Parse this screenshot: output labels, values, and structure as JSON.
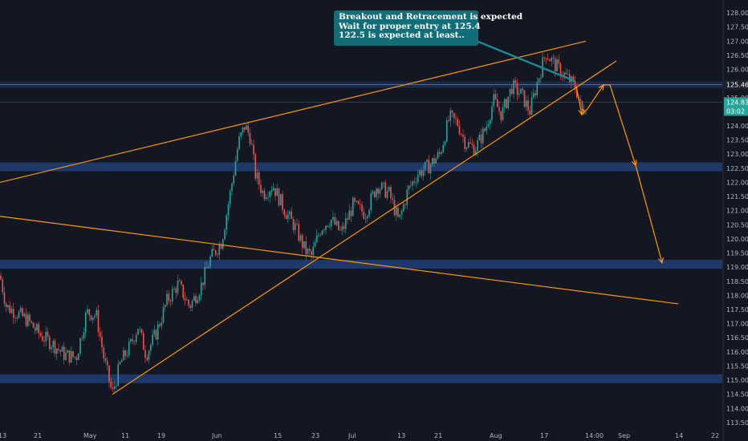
{
  "colors": {
    "background": "#131722",
    "up": "#26a69a",
    "down": "#ef5350",
    "trendline": "#ff9800",
    "zone": "#1e3a6e",
    "callout": "#116d78"
  },
  "annotation": {
    "lines": [
      "Breakout and Retracement is expected",
      "Wait for proper entry at 125.4",
      "122.5 is expected at least.."
    ]
  },
  "price_badges": [
    {
      "value": "125.460",
      "style": "dark"
    },
    {
      "value": "124.839",
      "style": "green"
    },
    {
      "value": "03:02",
      "style": "green"
    }
  ],
  "chart_data": {
    "type": "candlestick",
    "x_ticks": [
      "13",
      "21",
      "May",
      "11",
      "19",
      "Jun",
      "15",
      "23",
      "Jul",
      "13",
      "21",
      "Aug",
      "17",
      "14:00",
      "Sep",
      "14",
      "22"
    ],
    "y_ticks": [
      "128.000",
      "127.500",
      "127.000",
      "126.500",
      "126.000",
      "125.500",
      "125.000",
      "124.500",
      "124.000",
      "123.500",
      "123.000",
      "122.500",
      "122.000",
      "121.500",
      "121.000",
      "120.500",
      "120.000",
      "119.500",
      "119.000",
      "118.500",
      "118.000",
      "117.500",
      "117.000",
      "116.500",
      "116.000",
      "115.500",
      "115.000",
      "114.500",
      "114.000",
      "113.500"
    ],
    "ylim": [
      113.3,
      128.2
    ],
    "price_path": [
      [
        0,
        118.7
      ],
      [
        8,
        117.6
      ],
      [
        20,
        117.4
      ],
      [
        35,
        117.1
      ],
      [
        50,
        116.6
      ],
      [
        65,
        116.3
      ],
      [
        80,
        115.9
      ],
      [
        95,
        115.8
      ],
      [
        108,
        117.4
      ],
      [
        120,
        117.3
      ],
      [
        130,
        115.7
      ],
      [
        140,
        114.5
      ],
      [
        150,
        115.6
      ],
      [
        162,
        116.2
      ],
      [
        172,
        116.9
      ],
      [
        182,
        115.9
      ],
      [
        195,
        116.7
      ],
      [
        208,
        117.8
      ],
      [
        222,
        118.4
      ],
      [
        236,
        117.6
      ],
      [
        250,
        118.3
      ],
      [
        262,
        119.3
      ],
      [
        276,
        119.9
      ],
      [
        288,
        121.8
      ],
      [
        297,
        123.4
      ],
      [
        305,
        124.0
      ],
      [
        312,
        123.6
      ],
      [
        318,
        122.3
      ],
      [
        328,
        121.6
      ],
      [
        340,
        121.9
      ],
      [
        355,
        121.0
      ],
      [
        368,
        120.4
      ],
      [
        380,
        119.6
      ],
      [
        388,
        119.4
      ],
      [
        400,
        120.4
      ],
      [
        412,
        120.7
      ],
      [
        425,
        120.2
      ],
      [
        440,
        121.2
      ],
      [
        455,
        120.9
      ],
      [
        470,
        121.9
      ],
      [
        485,
        121.6
      ],
      [
        497,
        120.6
      ],
      [
        508,
        121.7
      ],
      [
        520,
        122.3
      ],
      [
        535,
        122.6
      ],
      [
        548,
        123.0
      ],
      [
        560,
        124.3
      ],
      [
        570,
        124.1
      ],
      [
        580,
        123.4
      ],
      [
        592,
        123.2
      ],
      [
        605,
        123.9
      ],
      [
        615,
        124.9
      ],
      [
        625,
        124.4
      ],
      [
        638,
        125.4
      ],
      [
        650,
        125.1
      ],
      [
        660,
        124.5
      ],
      [
        670,
        125.6
      ],
      [
        680,
        126.6
      ],
      [
        690,
        126.2
      ],
      [
        700,
        125.9
      ],
      [
        710,
        125.6
      ],
      [
        718,
        125.3
      ],
      [
        725,
        124.5
      ],
      [
        732,
        124.8
      ]
    ],
    "zones": [
      {
        "price": 125.46,
        "label": "125.460"
      },
      {
        "price": 122.55
      },
      {
        "price": 119.1
      },
      {
        "price": 115.05
      }
    ],
    "trendlines": [
      {
        "name": "upper-channel",
        "from": [
          0,
          122.0
        ],
        "to": [
          730,
          127.0
        ]
      },
      {
        "name": "lower-channel",
        "from": [
          0,
          120.8
        ],
        "to": [
          845,
          117.7
        ]
      },
      {
        "name": "rising-support",
        "from": [
          140,
          114.5
        ],
        "to": [
          768,
          126.3
        ]
      }
    ],
    "projection": [
      [
        718,
        125.4
      ],
      [
        725,
        124.4
      ],
      [
        732,
        124.6
      ],
      [
        752,
        125.45
      ],
      [
        760,
        125.45
      ],
      [
        792,
        122.6
      ],
      [
        825,
        119.15
      ]
    ]
  }
}
